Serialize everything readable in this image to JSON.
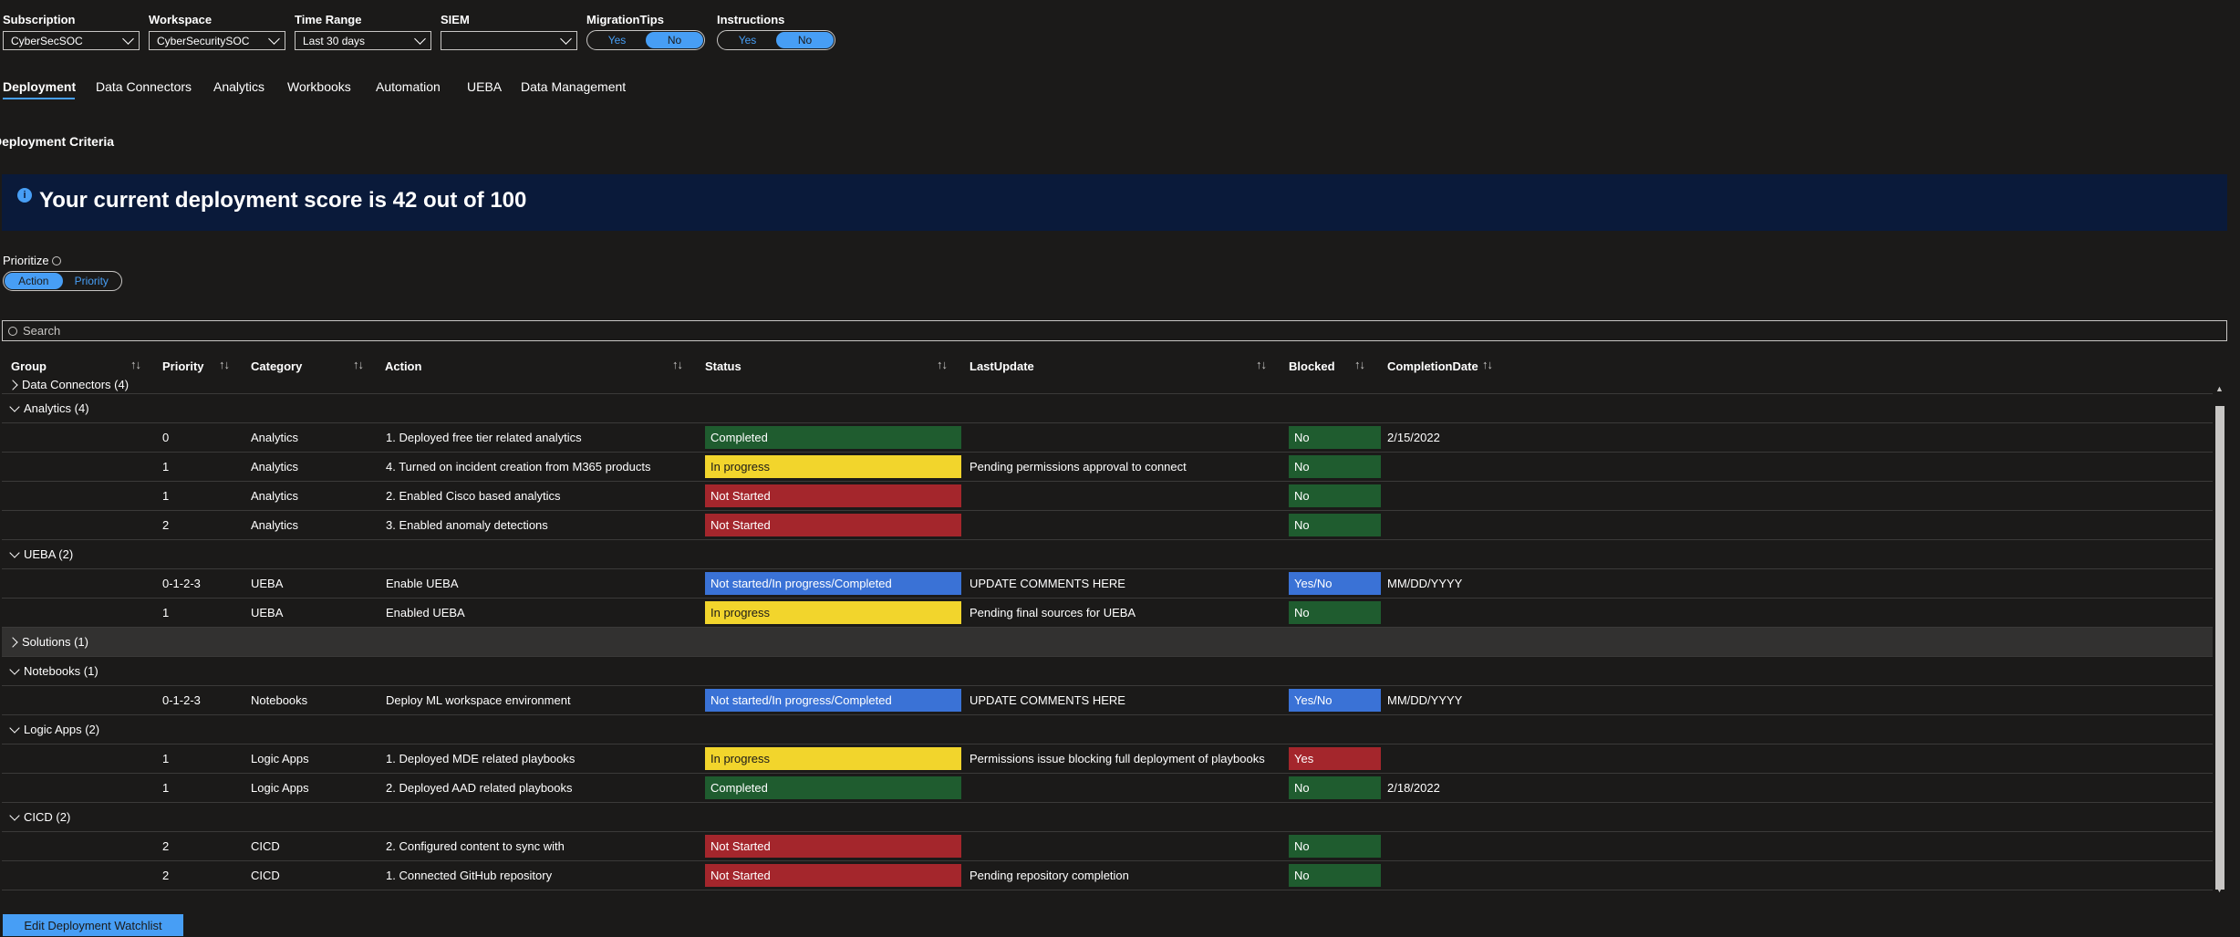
{
  "params": {
    "subscription": {
      "label": "Subscription",
      "value": "CyberSecSOC"
    },
    "workspace": {
      "label": "Workspace",
      "value": "CyberSecuritySOC"
    },
    "time_range": {
      "label": "Time Range",
      "value": "Last 30 days"
    },
    "siem": {
      "label": "SIEM",
      "value": ""
    },
    "migration_tips": {
      "label": "MigrationTips",
      "yes": "Yes",
      "no": "No",
      "selected": "No"
    },
    "instructions": {
      "label": "Instructions",
      "yes": "Yes",
      "no": "No",
      "selected": "No"
    }
  },
  "tabs": [
    "Deployment",
    "Data Connectors",
    "Analytics",
    "Workbooks",
    "Automation",
    "UEBA",
    "Data Management"
  ],
  "active_tab": "Deployment",
  "section_title": "Deployment Criteria",
  "banner": {
    "icon": "info-icon",
    "text": "Your current deployment score is 42 out of 100"
  },
  "prioritize": {
    "label": "Prioritize",
    "options": [
      "Action",
      "Priority"
    ],
    "selected": "Action"
  },
  "search": {
    "placeholder": "Search"
  },
  "columns": [
    "Group",
    "Priority",
    "Category",
    "Action",
    "Status",
    "LastUpdate",
    "Blocked",
    "CompletionDate"
  ],
  "groups": [
    {
      "label": "Data Connectors (4)",
      "expanded": false,
      "rows": []
    },
    {
      "label": "Analytics (4)",
      "expanded": true,
      "rows": [
        {
          "priority": "0",
          "category": "Analytics",
          "action": "1. Deployed free tier related analytics",
          "status": "Completed",
          "last_update": "",
          "blocked": "No",
          "completion_date": "2/15/2022"
        },
        {
          "priority": "1",
          "category": "Analytics",
          "action": "4. Turned on incident creation from M365 products",
          "status": "In progress",
          "last_update": "Pending permissions approval to connect",
          "blocked": "No",
          "completion_date": ""
        },
        {
          "priority": "1",
          "category": "Analytics",
          "action": "2. Enabled Cisco based analytics",
          "status": "Not Started",
          "last_update": "",
          "blocked": "No",
          "completion_date": ""
        },
        {
          "priority": "2",
          "category": "Analytics",
          "action": "3. Enabled anomaly detections",
          "status": "Not Started",
          "last_update": "",
          "blocked": "No",
          "completion_date": ""
        }
      ]
    },
    {
      "label": "UEBA (2)",
      "expanded": true,
      "rows": [
        {
          "priority": "0-1-2-3",
          "category": "UEBA",
          "action": "Enable UEBA",
          "status": "Not started/In progress/Completed",
          "last_update": "UPDATE COMMENTS HERE",
          "blocked": "Yes/No",
          "completion_date": "MM/DD/YYYY"
        },
        {
          "priority": "1",
          "category": "UEBA",
          "action": "Enabled UEBA",
          "status": "In progress",
          "last_update": "Pending final sources for UEBA",
          "blocked": "No",
          "completion_date": ""
        }
      ]
    },
    {
      "label": "Solutions (1)",
      "expanded": false,
      "highlighted": true,
      "rows": []
    },
    {
      "label": "Notebooks (1)",
      "expanded": true,
      "rows": [
        {
          "priority": "0-1-2-3",
          "category": "Notebooks",
          "action": "Deploy ML workspace environment",
          "status": "Not started/In progress/Completed",
          "last_update": "UPDATE COMMENTS HERE",
          "blocked": "Yes/No",
          "completion_date": "MM/DD/YYYY"
        }
      ]
    },
    {
      "label": "Logic Apps (2)",
      "expanded": true,
      "rows": [
        {
          "priority": "1",
          "category": "Logic Apps",
          "action": "1. Deployed MDE related playbooks",
          "status": "In progress",
          "last_update": "Permissions issue blocking full deployment of playbooks",
          "blocked": "Yes",
          "completion_date": ""
        },
        {
          "priority": "1",
          "category": "Logic Apps",
          "action": "2. Deployed AAD related playbooks",
          "status": "Completed",
          "last_update": "",
          "blocked": "No",
          "completion_date": "2/18/2022"
        }
      ]
    },
    {
      "label": "CICD (2)",
      "expanded": true,
      "rows": [
        {
          "priority": "2",
          "category": "CICD",
          "action": "2. Configured content to sync with",
          "status": "Not Started",
          "last_update": "",
          "blocked": "No",
          "completion_date": ""
        },
        {
          "priority": "2",
          "category": "CICD",
          "action": "1. Connected GitHub repository",
          "status": "Not Started",
          "last_update": "Pending repository completion",
          "blocked": "No",
          "completion_date": ""
        }
      ]
    }
  ],
  "status_colors": {
    "Completed": "#1f5c2f",
    "In progress": "#f2d52c",
    "Not Started": "#a4262c",
    "Not started/In progress/Completed": "#3a72d6"
  },
  "blocked_colors": {
    "No": "#1f5c2f",
    "Yes": "#a4262c",
    "Yes/No": "#3a72d6"
  },
  "edit_button": "Edit Deployment Watchlist"
}
